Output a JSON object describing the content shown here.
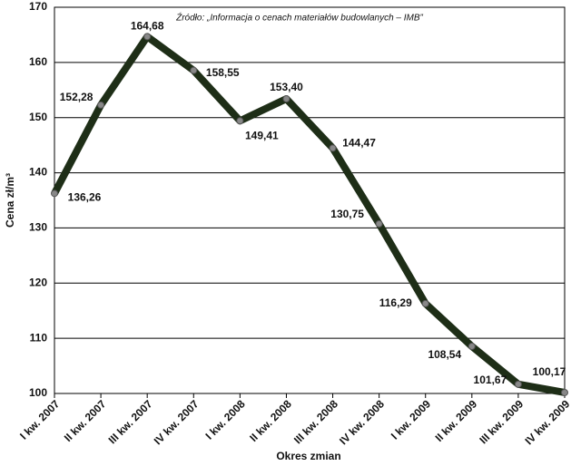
{
  "chart_data": {
    "type": "line",
    "annotation": "Źródło: „Informacja o cenach materiałów budowlanych – IMB”",
    "y_label": "Cena zł/m³",
    "x_label": "Okres zmian",
    "categories": [
      "I kw. 2007",
      "II kw. 2007",
      "III kw. 2007",
      "IV kw. 2007",
      "I kw. 2008",
      "II kw. 2008",
      "III kw. 2008",
      "IV kw. 2008",
      "I kw. 2009",
      "II kw. 2009",
      "III kw. 2009",
      "IV kw. 2009"
    ],
    "values": [
      136.26,
      152.28,
      164.68,
      158.55,
      149.41,
      153.4,
      144.47,
      130.75,
      116.29,
      108.54,
      101.67,
      100.17
    ],
    "value_labels": [
      "136,26",
      "152,28",
      "164,68",
      "158,55",
      "149,41",
      "153,40",
      "144,47",
      "130,75",
      "116,29",
      "108,54",
      "101,67",
      "100,17"
    ],
    "color": "#1e2e17",
    "ylim": [
      100,
      170
    ],
    "yticks": [
      100,
      110,
      120,
      130,
      140,
      150,
      160,
      170
    ],
    "grid": true
  }
}
